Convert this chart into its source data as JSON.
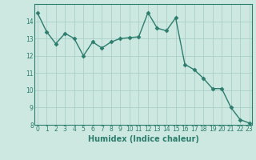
{
  "x": [
    0,
    1,
    2,
    3,
    4,
    5,
    6,
    7,
    8,
    9,
    10,
    11,
    12,
    13,
    14,
    15,
    16,
    17,
    18,
    19,
    20,
    21,
    22,
    23
  ],
  "y": [
    14.5,
    13.4,
    12.7,
    13.3,
    13.0,
    12.0,
    12.8,
    12.45,
    12.8,
    13.0,
    13.05,
    13.1,
    14.5,
    13.6,
    13.45,
    14.2,
    11.5,
    11.2,
    10.7,
    10.1,
    10.1,
    9.0,
    8.3,
    8.1
  ],
  "line_color": "#2d7d6e",
  "marker": "D",
  "marker_size": 2.5,
  "bg_color": "#cce8e0",
  "grid_color": "#aacfc8",
  "xlabel": "Humidex (Indice chaleur)",
  "ylim": [
    8,
    15
  ],
  "xlim": [
    -0.3,
    23.3
  ],
  "yticks": [
    8,
    9,
    10,
    11,
    12,
    13,
    14
  ],
  "xticks": [
    0,
    1,
    2,
    3,
    4,
    5,
    6,
    7,
    8,
    9,
    10,
    11,
    12,
    13,
    14,
    15,
    16,
    17,
    18,
    19,
    20,
    21,
    22,
    23
  ],
  "tick_fontsize": 5.5,
  "xlabel_fontsize": 7.0,
  "line_width": 1.0
}
